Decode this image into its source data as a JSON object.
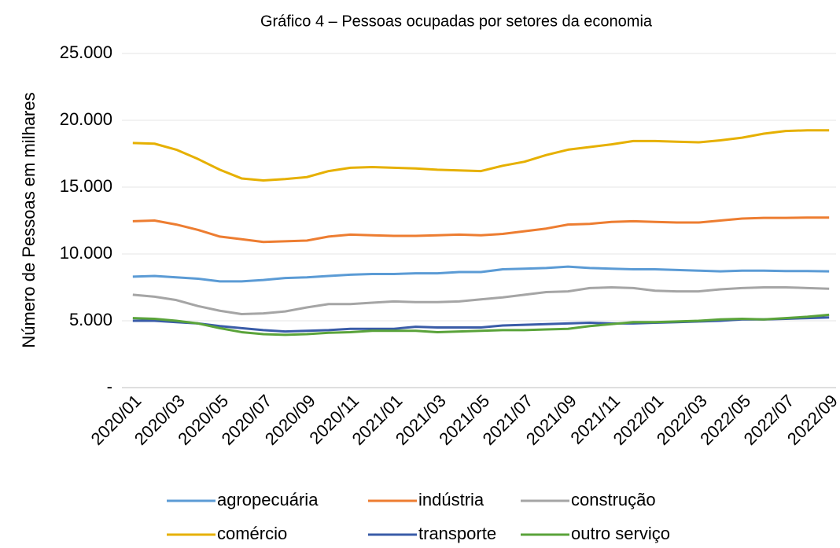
{
  "chart_data": {
    "type": "line",
    "title": "Gráfico 4 – Pessoas ocupadas por setores da economia",
    "y_label": "Número de Pessoas em milhares",
    "categories": [
      "2020/01",
      null,
      "2020/03",
      null,
      "2020/05",
      null,
      "2020/07",
      null,
      "2020/09",
      null,
      "2020/11",
      null,
      "2021/01",
      null,
      "2021/03",
      null,
      "2021/05",
      null,
      "2021/07",
      null,
      "2021/09",
      null,
      "2021/11",
      null,
      "2022/01",
      null,
      "2022/03",
      null,
      "2022/05",
      null,
      "2022/07",
      null,
      "2022/09"
    ],
    "series": [
      {
        "name": "agropecuária",
        "color": "#5b9bd5",
        "values": [
          8300,
          8350,
          8250,
          8150,
          7950,
          7950,
          8050,
          8200,
          8250,
          8350,
          8450,
          8500,
          8500,
          8550,
          8550,
          8650,
          8650,
          8850,
          8900,
          8950,
          9050,
          8950,
          8900,
          8850,
          8850,
          8800,
          8750,
          8700,
          8750,
          8750,
          8720,
          8720,
          8700
        ]
      },
      {
        "name": "indústria",
        "color": "#ed7d31",
        "values": [
          12450,
          12500,
          12200,
          11800,
          11300,
          11100,
          10900,
          10950,
          11000,
          11300,
          11450,
          11400,
          11350,
          11350,
          11400,
          11450,
          11400,
          11500,
          11700,
          11900,
          12200,
          12250,
          12400,
          12450,
          12400,
          12350,
          12350,
          12500,
          12650,
          12700,
          12700,
          12720,
          12720
        ]
      },
      {
        "name": "construção",
        "color": "#a5a5a5",
        "values": [
          6950,
          6800,
          6550,
          6100,
          5750,
          5500,
          5550,
          5700,
          6000,
          6250,
          6250,
          6350,
          6450,
          6400,
          6400,
          6450,
          6600,
          6750,
          6950,
          7150,
          7200,
          7450,
          7500,
          7450,
          7250,
          7200,
          7200,
          7350,
          7450,
          7500,
          7500,
          7450,
          7400
        ]
      },
      {
        "name": "comércio",
        "color": "#e6b000",
        "values": [
          18300,
          18250,
          17800,
          17100,
          16300,
          15650,
          15500,
          15600,
          15750,
          16200,
          16450,
          16500,
          16450,
          16400,
          16300,
          16250,
          16200,
          16600,
          16900,
          17400,
          17800,
          18000,
          18200,
          18450,
          18450,
          18400,
          18350,
          18500,
          18700,
          19000,
          19200,
          19250,
          19250
        ]
      },
      {
        "name": "transporte",
        "color": "#3a5ca8",
        "values": [
          5000,
          5000,
          4900,
          4800,
          4600,
          4450,
          4300,
          4200,
          4250,
          4300,
          4400,
          4400,
          4400,
          4550,
          4500,
          4500,
          4500,
          4650,
          4700,
          4750,
          4800,
          4850,
          4800,
          4800,
          4850,
          4900,
          4950,
          5000,
          5100,
          5100,
          5150,
          5200,
          5250
        ]
      },
      {
        "name": "outro serviço",
        "color": "#5aa33a",
        "values": [
          5200,
          5150,
          5000,
          4800,
          4450,
          4150,
          4000,
          3950,
          4000,
          4100,
          4150,
          4250,
          4250,
          4250,
          4150,
          4200,
          4250,
          4300,
          4300,
          4350,
          4400,
          4600,
          4750,
          4900,
          4900,
          4950,
          5000,
          5100,
          5150,
          5100,
          5200,
          5300,
          5450
        ]
      }
    ],
    "ylim": [
      0,
      25000
    ],
    "yticks": [
      {
        "value": 0,
        "label": "-"
      },
      {
        "value": 5000,
        "label": "5.000"
      },
      {
        "value": 10000,
        "label": "10.000"
      },
      {
        "value": 15000,
        "label": "15.000"
      },
      {
        "value": 20000,
        "label": "20.000"
      },
      {
        "value": 25000,
        "label": "25.000"
      }
    ],
    "grid": true
  }
}
